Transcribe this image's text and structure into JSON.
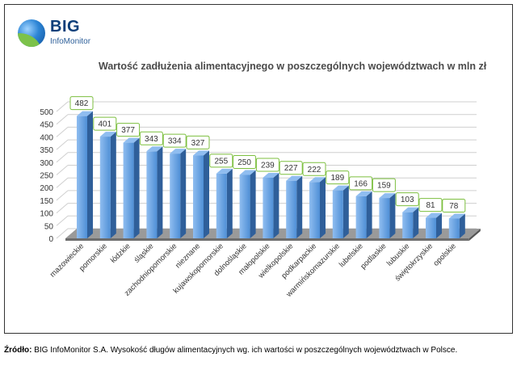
{
  "logo": {
    "name": "BIG",
    "subtitle": "InfoMonitor"
  },
  "chart_data": {
    "type": "bar",
    "title": "Wartość zadłużenia alimentacyjnego w poszczególnych województwach w mln zł",
    "categories": [
      "mazowieckie",
      "pomorskie",
      "łódzkie",
      "śląskie",
      "zachodniopomorskie",
      "nieznane",
      "kujawskopomorskie",
      "dolnośląskie",
      "małopolskie",
      "wielkopolskie",
      "podkarpackie",
      "warmińskomazurskie",
      "lubelskie",
      "podlaskie",
      "lubuskie",
      "świętokrzyskie",
      "opolskie"
    ],
    "values": [
      482,
      401,
      377,
      343,
      334,
      327,
      255,
      250,
      239,
      227,
      222,
      189,
      166,
      159,
      103,
      81,
      78
    ],
    "yticks": [
      0,
      50,
      100,
      150,
      200,
      250,
      300,
      350,
      400,
      450,
      500
    ],
    "ylim": [
      0,
      500
    ],
    "grid": true,
    "legend": "none",
    "colors": {
      "bar": "#4f8fd6",
      "bar_side": "#2f5f9a",
      "bar_top": "#8fbdf0",
      "label_border": "#7cbf3f",
      "grid": "#cfcfcf",
      "floor": "#6d6d6d"
    }
  },
  "source": {
    "label": "Źródło:",
    "text": " BIG InfoMonitor S.A. Wysokość długów alimentacyjnych  wg. ich wartości w poszczególnych województwach  w Polsce."
  }
}
